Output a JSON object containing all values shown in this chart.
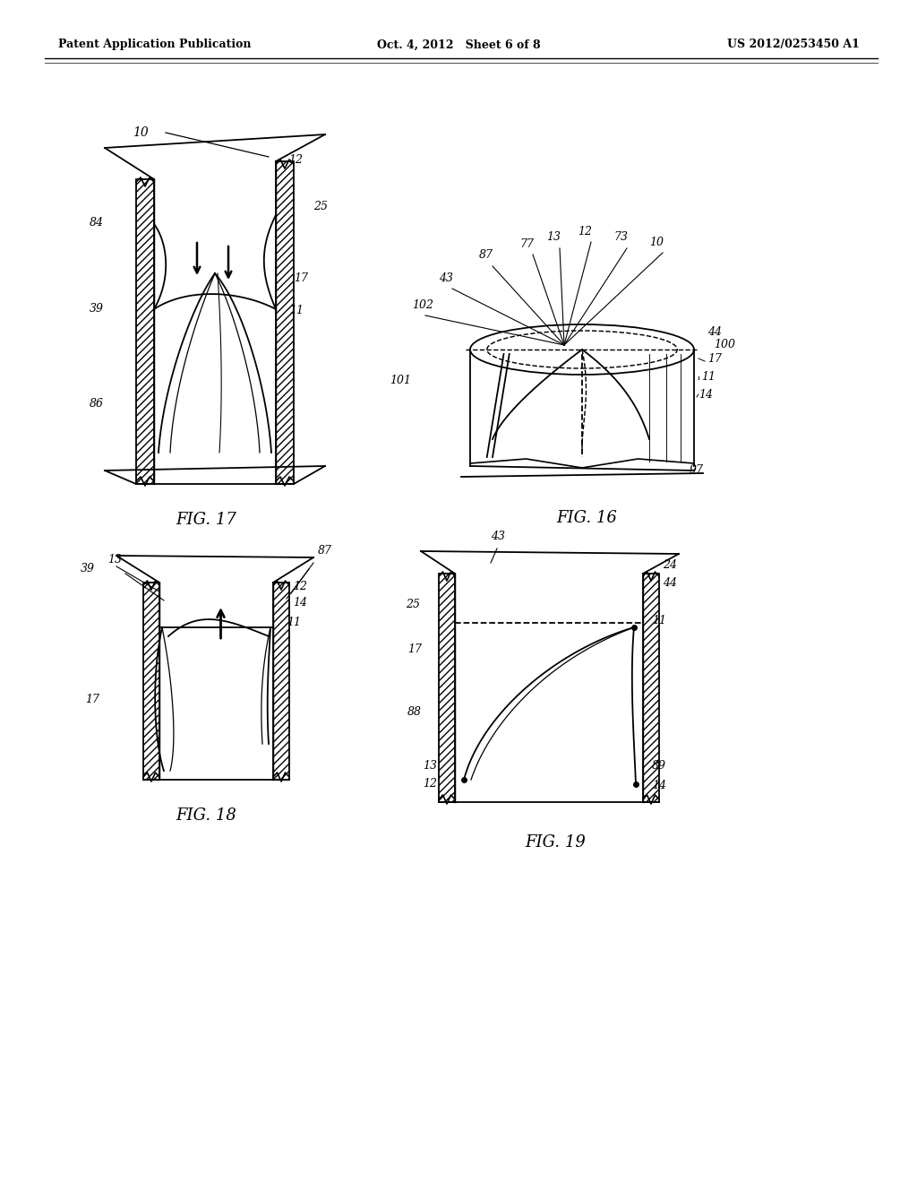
{
  "background_color": "#ffffff",
  "header_left": "Patent Application Publication",
  "header_mid": "Oct. 4, 2012   Sheet 6 of 8",
  "header_right": "US 2012/0253450 A1",
  "fig17_label": "FIG. 17",
  "fig16_label": "FIG. 16",
  "fig18_label": "FIG. 18",
  "fig19_label": "FIG. 19",
  "line_color": "#000000",
  "line_width": 1.3
}
